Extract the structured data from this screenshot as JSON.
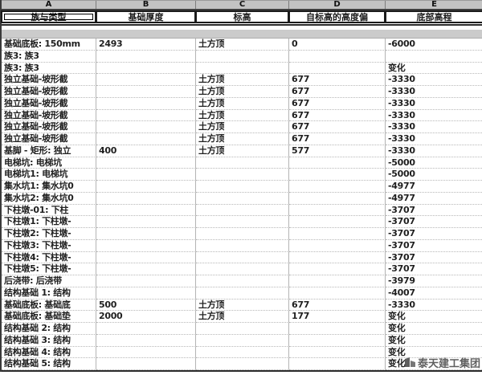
{
  "table": {
    "column_letters": [
      "A",
      "B",
      "C",
      "D",
      "E"
    ],
    "headers": [
      "族与类型",
      "基础厚度",
      "标高",
      "自标高的高度偏",
      "底部高程"
    ],
    "rows": [
      [
        "基础底板: 150mm",
        "2493",
        "土方顶",
        "0",
        "-6000"
      ],
      [
        "族3: 族3",
        "",
        "",
        "",
        ""
      ],
      [
        "族3: 族3",
        "",
        "",
        "",
        "变化"
      ],
      [
        "独立基础-坡形截",
        "",
        "土方顶",
        "677",
        "-3330"
      ],
      [
        "独立基础-坡形截",
        "",
        "土方顶",
        "677",
        "-3330"
      ],
      [
        "独立基础-坡形截",
        "",
        "土方顶",
        "677",
        "-3330"
      ],
      [
        "独立基础-坡形截",
        "",
        "土方顶",
        "677",
        "-3330"
      ],
      [
        "独立基础-坡形截",
        "",
        "土方顶",
        "677",
        "-3330"
      ],
      [
        "独立基础-坡形截",
        "",
        "土方顶",
        "677",
        "-3330"
      ],
      [
        "基脚 - 矩形: 独立",
        "400",
        "土方顶",
        "577",
        "-3330"
      ],
      [
        "电梯坑: 电梯坑",
        "",
        "",
        "",
        "-5000"
      ],
      [
        "电梯坑1: 电梯坑",
        "",
        "",
        "",
        "-5000"
      ],
      [
        "集水坑1: 集水坑0",
        "",
        "",
        "",
        "-4977"
      ],
      [
        "集水坑2: 集水坑0",
        "",
        "",
        "",
        "-4977"
      ],
      [
        "下柱墩-01: 下柱",
        "",
        "",
        "",
        "-3707"
      ],
      [
        "下柱墩1: 下柱墩-",
        "",
        "",
        "",
        "-3707"
      ],
      [
        "下柱墩2: 下柱墩-",
        "",
        "",
        "",
        "-3707"
      ],
      [
        "下柱墩3: 下柱墩-",
        "",
        "",
        "",
        "-3707"
      ],
      [
        "下柱墩4: 下柱墩-",
        "",
        "",
        "",
        "-3707"
      ],
      [
        "下柱墩5: 下柱墩-",
        "",
        "",
        "",
        "-3707"
      ],
      [
        "后浇带: 后浇带",
        "",
        "",
        "",
        "-3979"
      ],
      [
        "结构基础 1: 结构",
        "",
        "",
        "",
        "-4007"
      ],
      [
        "基础底板: 基础底",
        "500",
        "土方顶",
        "677",
        "-3330"
      ],
      [
        "基础底板: 基础垫",
        "2000",
        "土方顶",
        "177",
        "变化"
      ],
      [
        "结构基础 2: 结构",
        "",
        "",
        "",
        "变化"
      ],
      [
        "结构基础 3: 结构",
        "",
        "",
        "",
        "变化"
      ],
      [
        "结构基础 4: 结构",
        "",
        "",
        "",
        "变化"
      ],
      [
        "结构基础 5: 结构",
        "",
        "",
        "",
        "变化"
      ]
    ]
  },
  "watermark": {
    "text": "泰天建工集团"
  },
  "colors": {
    "column_letter_bg": "#c3c3c3",
    "separator_bg": "#cbcbcb",
    "grid_line": "#b4b4b4",
    "border_dark": "#2b2b2b",
    "text": "#1f1f1f",
    "watermark_text": "#3c3c3c"
  }
}
